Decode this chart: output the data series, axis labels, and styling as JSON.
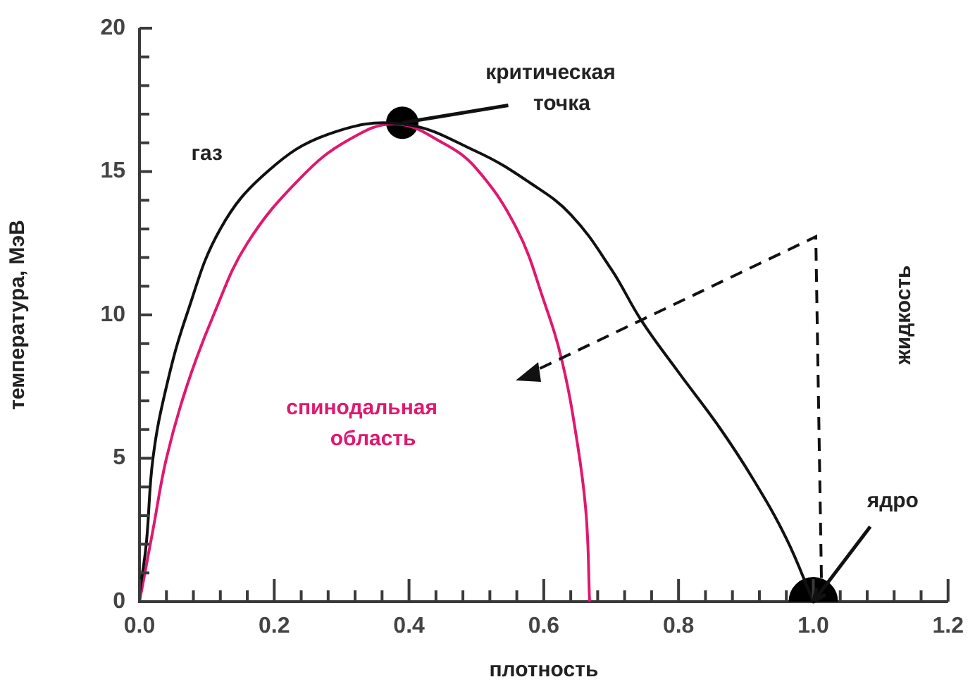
{
  "chart_data": {
    "type": "line",
    "xlabel": "плотность",
    "ylabel": "температура, МэВ",
    "xlim": [
      0,
      1.2
    ],
    "ylim": [
      0,
      20
    ],
    "xticks": [
      {
        "value": 0,
        "label": "0.0"
      },
      {
        "value": 0.04,
        "label": null
      },
      {
        "value": 0.08,
        "label": null
      },
      {
        "value": 0.12,
        "label": null
      },
      {
        "value": 0.16,
        "label": null
      },
      {
        "value": 0.2,
        "label": "0.2"
      },
      {
        "value": 0.24,
        "label": null
      },
      {
        "value": 0.28,
        "label": null
      },
      {
        "value": 0.32,
        "label": null
      },
      {
        "value": 0.36,
        "label": null
      },
      {
        "value": 0.4,
        "label": "0.4"
      },
      {
        "value": 0.44,
        "label": null
      },
      {
        "value": 0.48,
        "label": null
      },
      {
        "value": 0.52,
        "label": null
      },
      {
        "value": 0.56,
        "label": null
      },
      {
        "value": 0.6,
        "label": "0.6"
      },
      {
        "value": 0.64,
        "label": null
      },
      {
        "value": 0.68,
        "label": null
      },
      {
        "value": 0.72,
        "label": null
      },
      {
        "value": 0.76,
        "label": null
      },
      {
        "value": 0.8,
        "label": "0.8"
      },
      {
        "value": 0.84,
        "label": null
      },
      {
        "value": 0.88,
        "label": null
      },
      {
        "value": 0.92,
        "label": null
      },
      {
        "value": 0.96,
        "label": null
      },
      {
        "value": 1,
        "label": "1.0"
      },
      {
        "value": 1.04,
        "label": null
      },
      {
        "value": 1.08,
        "label": null
      },
      {
        "value": 1.12,
        "label": null
      },
      {
        "value": 1.16,
        "label": null
      },
      {
        "value": 1.2,
        "label": "1.2"
      }
    ],
    "yticks": [
      0,
      {
        "value": 1,
        "label": null
      },
      {
        "value": 2,
        "label": null
      },
      {
        "value": 3,
        "label": null
      },
      {
        "value": 4,
        "label": null
      },
      5,
      {
        "value": 6,
        "label": null
      },
      {
        "value": 7,
        "label": null
      },
      {
        "value": 8,
        "label": null
      },
      {
        "value": 9,
        "label": null
      },
      10,
      {
        "value": 11,
        "label": null
      },
      {
        "value": 12,
        "label": null
      },
      {
        "value": 13,
        "label": null
      },
      {
        "value": 14,
        "label": null
      },
      15,
      {
        "value": 16,
        "label": null
      },
      {
        "value": 17,
        "label": null
      },
      {
        "value": 18,
        "label": null
      },
      {
        "value": 19,
        "label": null
      },
      20
    ],
    "series": [
      {
        "type": "line",
        "color": "#111111",
        "x": [
          0,
          0.01,
          0.02,
          0.04,
          0.07,
          0.12,
          0.19,
          0.28,
          0.39,
          0.5,
          0.58,
          0.64,
          0.7,
          0.745,
          0.8,
          0.86,
          0.91,
          0.96,
          1.0
        ],
        "values": [
          0.3,
          2,
          5,
          7.5,
          10,
          13,
          15,
          16.3,
          16.66,
          15.7,
          14.6,
          13.5,
          11.6,
          9.8,
          8,
          6.1,
          4.3,
          2.2,
          0
        ]
      },
      {
        "type": "line",
        "color": "#e0186f",
        "x": [
          0,
          0.02,
          0.04,
          0.07,
          0.11,
          0.16,
          0.24,
          0.31,
          0.38,
          0.45,
          0.5,
          0.56,
          0.6,
          0.627,
          0.65,
          0.663,
          0.668
        ],
        "values": [
          0,
          2.5,
          5,
          7.5,
          10,
          12.5,
          14.8,
          16.1,
          16.66,
          16,
          15.1,
          13,
          10.5,
          8.4,
          5.5,
          3,
          0
        ]
      },
      {
        "type": "scatter",
        "color": "#000000",
        "marker": "circle",
        "x": [
          0.39,
          1.0
        ],
        "values": [
          16.7,
          0
        ]
      }
    ],
    "annotations": [
      "газ",
      {
        "text": "критическая точка",
        "x": 0.39,
        "y": 16.7
      },
      "спинодальная область",
      "жидкость",
      {
        "text": "ядро",
        "x": 1.0,
        "y": 0
      }
    ],
    "grid": false,
    "legend": false,
    "line_style": "solid"
  }
}
